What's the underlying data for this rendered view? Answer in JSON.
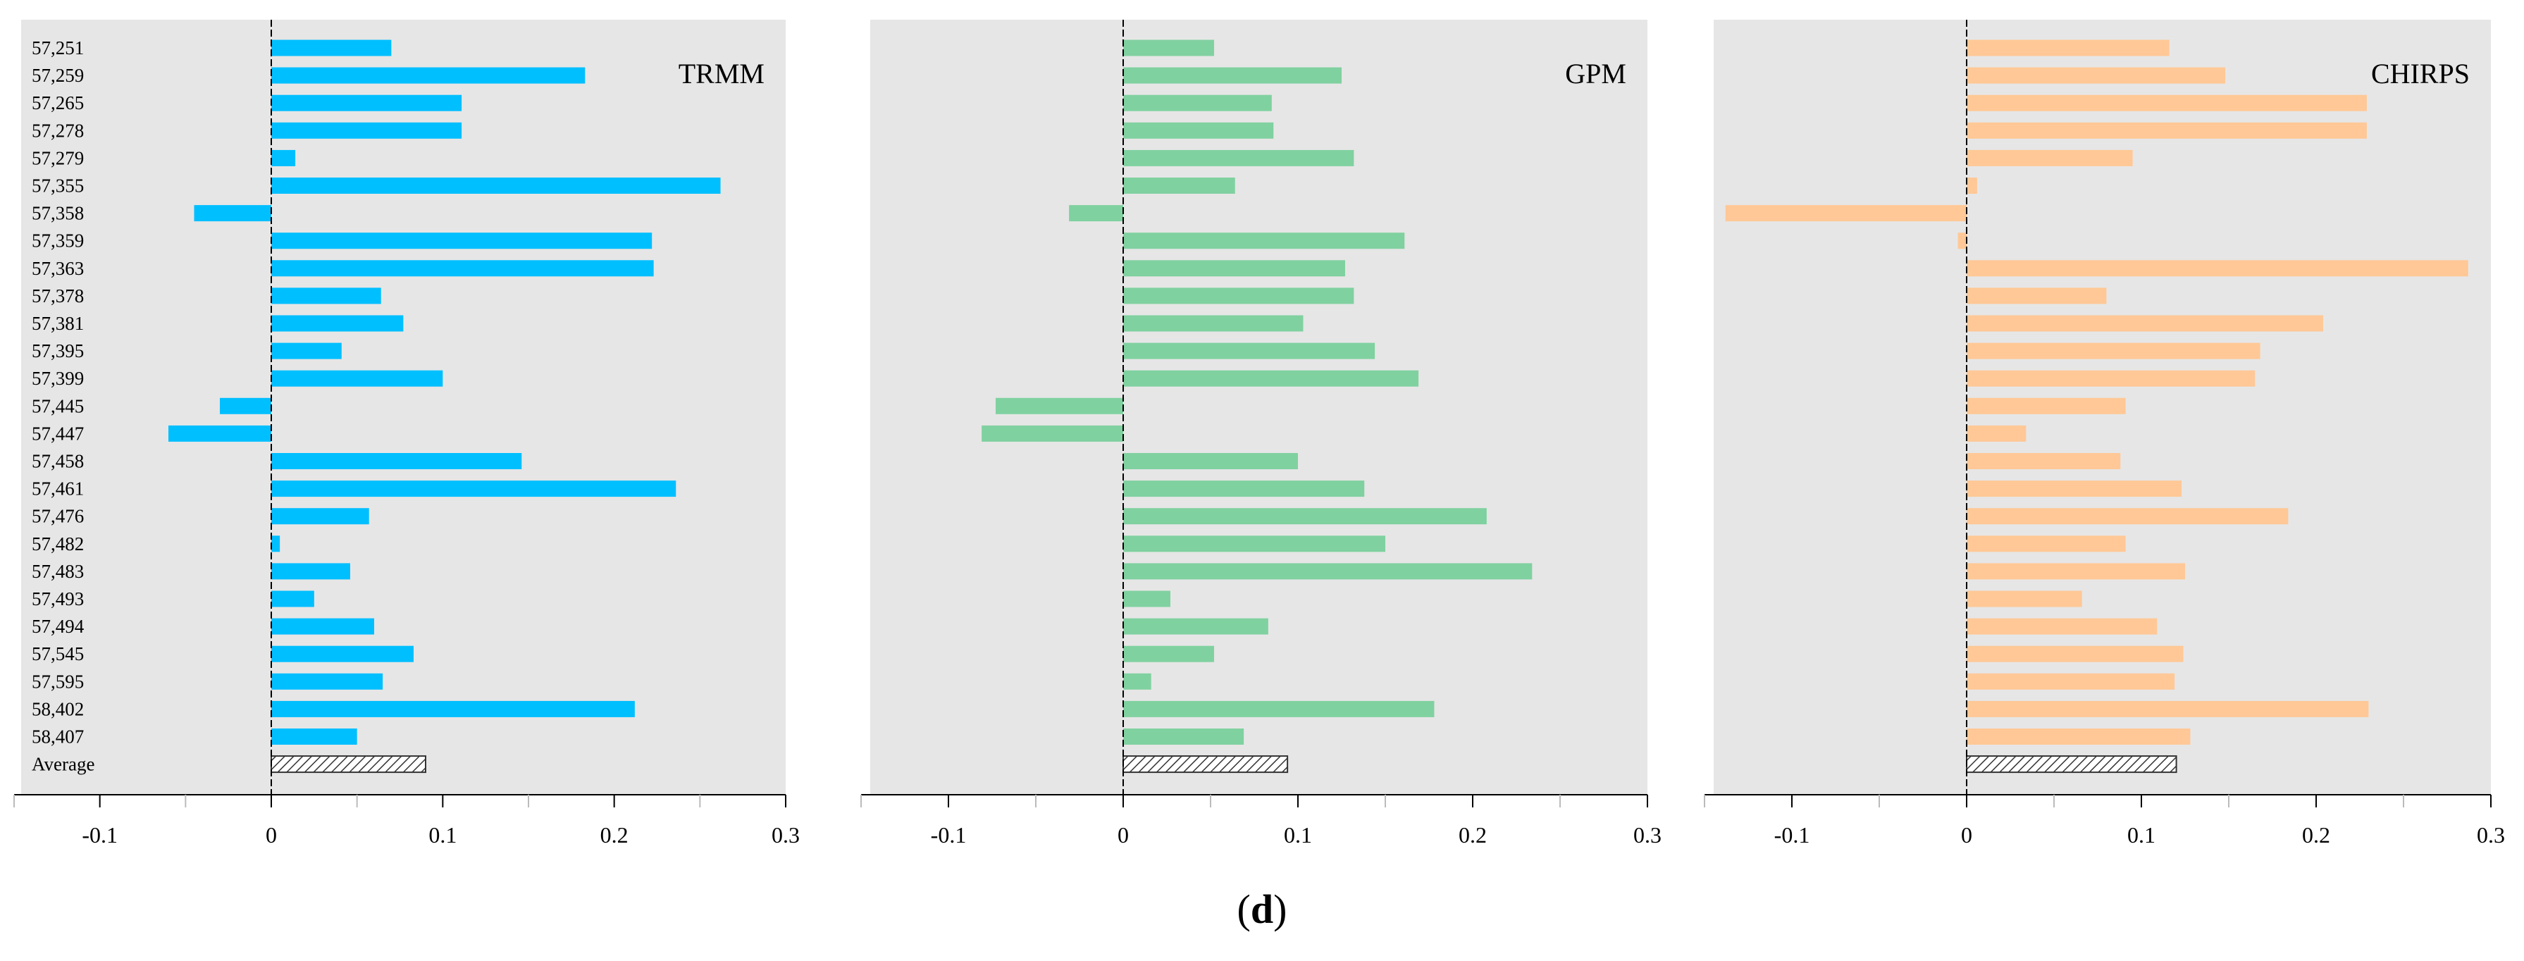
{
  "caption": {
    "open": "(",
    "letter": "d",
    "close": ")"
  },
  "chart_data": [
    {
      "type": "bar",
      "orientation": "horizontal",
      "title": "TRMM",
      "color": "#00bfff",
      "categories": [
        "57,251",
        "57,259",
        "57,265",
        "57,278",
        "57,279",
        "57,355",
        "57,358",
        "57,359",
        "57,363",
        "57,378",
        "57,381",
        "57,395",
        "57,399",
        "57,445",
        "57,447",
        "57,458",
        "57,461",
        "57,476",
        "57,482",
        "57,483",
        "57,493",
        "57,494",
        "57,545",
        "57,595",
        "58,402",
        "58,407",
        "Average"
      ],
      "values": [
        0.07,
        0.183,
        0.111,
        0.111,
        0.014,
        0.262,
        -0.045,
        0.222,
        0.223,
        0.064,
        0.077,
        0.041,
        0.1,
        -0.03,
        -0.06,
        0.146,
        0.236,
        0.057,
        0.005,
        0.046,
        0.025,
        0.06,
        0.083,
        0.065,
        0.212,
        0.05,
        0.09
      ],
      "xlim": [
        -0.15,
        0.3
      ],
      "xticks": [
        "-0.1",
        "0",
        "0.1",
        "0.2",
        "0.3"
      ],
      "grid": false,
      "show_category_labels": true
    },
    {
      "type": "bar",
      "orientation": "horizontal",
      "title": "GPM",
      "color": "#80d1a0",
      "categories": [
        "57,251",
        "57,259",
        "57,265",
        "57,278",
        "57,279",
        "57,355",
        "57,358",
        "57,359",
        "57,363",
        "57,378",
        "57,381",
        "57,395",
        "57,399",
        "57,445",
        "57,447",
        "57,458",
        "57,461",
        "57,476",
        "57,482",
        "57,483",
        "57,493",
        "57,494",
        "57,545",
        "57,595",
        "58,402",
        "58,407",
        "Average"
      ],
      "values": [
        0.052,
        0.125,
        0.085,
        0.086,
        0.132,
        0.064,
        -0.031,
        0.161,
        0.127,
        0.132,
        0.103,
        0.144,
        0.169,
        -0.073,
        -0.081,
        0.1,
        0.138,
        0.208,
        0.15,
        0.234,
        0.027,
        0.083,
        0.052,
        0.016,
        0.178,
        0.069,
        0.094
      ],
      "xlim": [
        -0.15,
        0.3
      ],
      "xticks": [
        "-0.1",
        "0",
        "0.1",
        "0.2",
        "0.3"
      ],
      "grid": false,
      "show_category_labels": false
    },
    {
      "type": "bar",
      "orientation": "horizontal",
      "title": "CHIRPS",
      "color": "#ffc896",
      "categories": [
        "57,251",
        "57,259",
        "57,265",
        "57,278",
        "57,279",
        "57,355",
        "57,358",
        "57,359",
        "57,363",
        "57,378",
        "57,381",
        "57,395",
        "57,399",
        "57,445",
        "57,447",
        "57,458",
        "57,461",
        "57,476",
        "57,482",
        "57,483",
        "57,493",
        "57,494",
        "57,545",
        "57,595",
        "58,402",
        "58,407",
        "Average"
      ],
      "values": [
        0.116,
        0.148,
        0.229,
        0.229,
        0.095,
        0.006,
        -0.138,
        -0.005,
        0.287,
        0.08,
        0.204,
        0.168,
        0.165,
        0.091,
        0.034,
        0.088,
        0.123,
        0.184,
        0.091,
        0.125,
        0.066,
        0.109,
        0.124,
        0.119,
        0.23,
        0.128,
        0.12
      ],
      "xlim": [
        -0.15,
        0.3
      ],
      "xticks": [
        "-0.1",
        "0",
        "0.1",
        "0.2",
        "0.3"
      ],
      "grid": false,
      "show_category_labels": false
    }
  ]
}
